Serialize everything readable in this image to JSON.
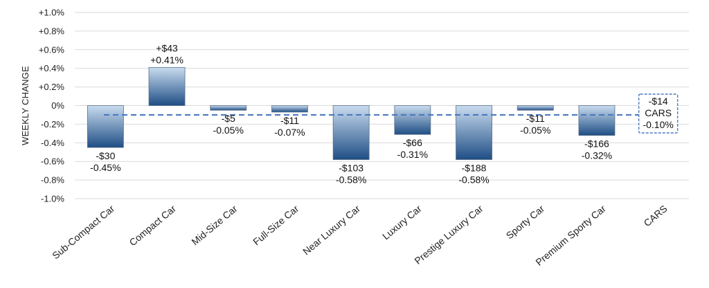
{
  "chart_data": {
    "type": "bar",
    "ylabel": "WEEKLY CHANGE",
    "ylim": [
      -1.0,
      1.0
    ],
    "yticks": [
      {
        "value": 1.0,
        "label": "+1.0%"
      },
      {
        "value": 0.8,
        "label": "+0.8%"
      },
      {
        "value": 0.6,
        "label": "+0.6%"
      },
      {
        "value": 0.4,
        "label": "+0.4%"
      },
      {
        "value": 0.2,
        "label": "+0.2%"
      },
      {
        "value": 0.0,
        "label": "0%"
      },
      {
        "value": -0.2,
        "label": "-0.2%"
      },
      {
        "value": -0.4,
        "label": "-0.4%"
      },
      {
        "value": -0.6,
        "label": "-0.6%"
      },
      {
        "value": -0.8,
        "label": "-0.8%"
      },
      {
        "value": -1.0,
        "label": "-1.0%"
      }
    ],
    "grid": true,
    "categories": [
      "Sub-Compact Car",
      "Compact Car",
      "Mid-Size Car",
      "Full-Size Car",
      "Near Luxury Car",
      "Luxury Car",
      "Prestige Luxury Car",
      "Sporty Car",
      "Premium Sporty Car",
      "CARS"
    ],
    "values": [
      -0.45,
      0.41,
      -0.05,
      -0.07,
      -0.58,
      -0.31,
      -0.58,
      -0.05,
      -0.32,
      null
    ],
    "labels": [
      [
        "-$30",
        "-0.45%"
      ],
      [
        "+$43",
        "+0.41%"
      ],
      [
        "-$5",
        "-0.05%"
      ],
      [
        "-$11",
        "-0.07%"
      ],
      [
        "-$103",
        "-0.58%"
      ],
      [
        "-$66",
        "-0.31%"
      ],
      [
        "-$188",
        "-0.58%"
      ],
      [
        "-$11",
        "-0.05%"
      ],
      [
        "-$166",
        "-0.32%"
      ],
      [
        "-$14",
        "CARS",
        "-0.10%"
      ]
    ],
    "reference_line": {
      "name": "CARS",
      "value": -0.1,
      "style": "dashed"
    },
    "colors": {
      "bar_dark": "#1f4e85",
      "bar_light": "#c9dcef",
      "reference": "#4a78c0",
      "grid": "#d9d9d9"
    }
  }
}
